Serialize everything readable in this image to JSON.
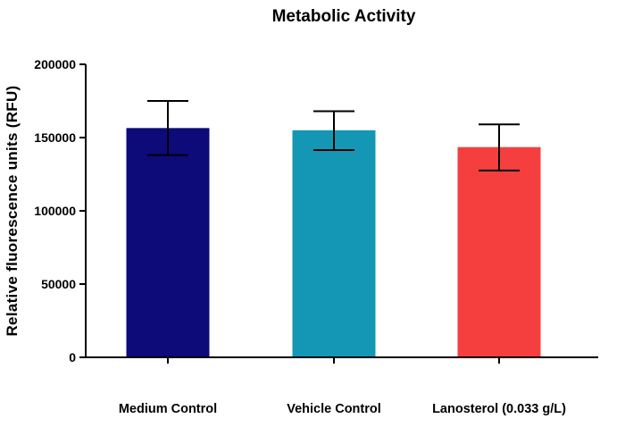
{
  "chart_data": {
    "type": "bar",
    "title": "Metabolic Activity",
    "xlabel": "",
    "ylabel": "Relative fluorescence units (RFU)",
    "ylim": [
      0,
      200000
    ],
    "yticks": [
      0,
      50000,
      100000,
      150000,
      200000
    ],
    "ytick_labels": [
      "0",
      "50000",
      "100000",
      "150000",
      "200000"
    ],
    "categories": [
      "Medium Control",
      "Vehicle Control",
      "Lanosterol (0.033 g/L)"
    ],
    "values": [
      156500,
      155000,
      143500
    ],
    "error_upper": [
      175000,
      168000,
      159000
    ],
    "error_lower": [
      138000,
      141500,
      127500
    ],
    "colors": [
      "#0d0a7a",
      "#1497b4",
      "#f53f3f"
    ],
    "grid": false
  }
}
